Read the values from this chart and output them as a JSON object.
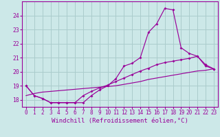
{
  "background_color": "#cce8e8",
  "grid_color": "#aacccc",
  "line_color": "#990099",
  "hours": [
    0,
    1,
    2,
    3,
    4,
    5,
    6,
    7,
    8,
    9,
    10,
    11,
    12,
    13,
    14,
    15,
    16,
    17,
    18,
    19,
    20,
    21,
    22,
    23
  ],
  "temp_main": [
    19.0,
    18.3,
    18.1,
    17.8,
    17.8,
    17.8,
    17.8,
    17.8,
    18.3,
    18.7,
    19.0,
    19.5,
    20.4,
    20.6,
    21.0,
    22.8,
    23.4,
    24.5,
    24.4,
    21.7,
    21.3,
    21.1,
    20.4,
    20.2
  ],
  "temp_smooth": [
    19.0,
    18.3,
    18.1,
    17.8,
    17.8,
    17.8,
    17.8,
    18.3,
    18.6,
    18.85,
    19.05,
    19.3,
    19.55,
    19.8,
    20.05,
    20.25,
    20.5,
    20.65,
    20.75,
    20.85,
    20.95,
    21.1,
    20.5,
    20.2
  ],
  "temp_linear": [
    18.3,
    18.45,
    18.55,
    18.6,
    18.65,
    18.7,
    18.75,
    18.8,
    18.85,
    18.9,
    18.95,
    19.0,
    19.1,
    19.2,
    19.3,
    19.45,
    19.55,
    19.65,
    19.75,
    19.85,
    19.95,
    20.05,
    20.1,
    20.2
  ],
  "ylim": [
    17.5,
    25.0
  ],
  "yticks": [
    18,
    19,
    20,
    21,
    22,
    23,
    24
  ],
  "xticks": [
    0,
    1,
    2,
    3,
    4,
    5,
    6,
    7,
    8,
    9,
    10,
    11,
    12,
    13,
    14,
    15,
    16,
    17,
    18,
    19,
    20,
    21,
    22,
    23
  ],
  "xlabel": "Windchill (Refroidissement éolien,°C)",
  "xlabel_fontsize": 6.5,
  "tick_fontsize": 5.5
}
